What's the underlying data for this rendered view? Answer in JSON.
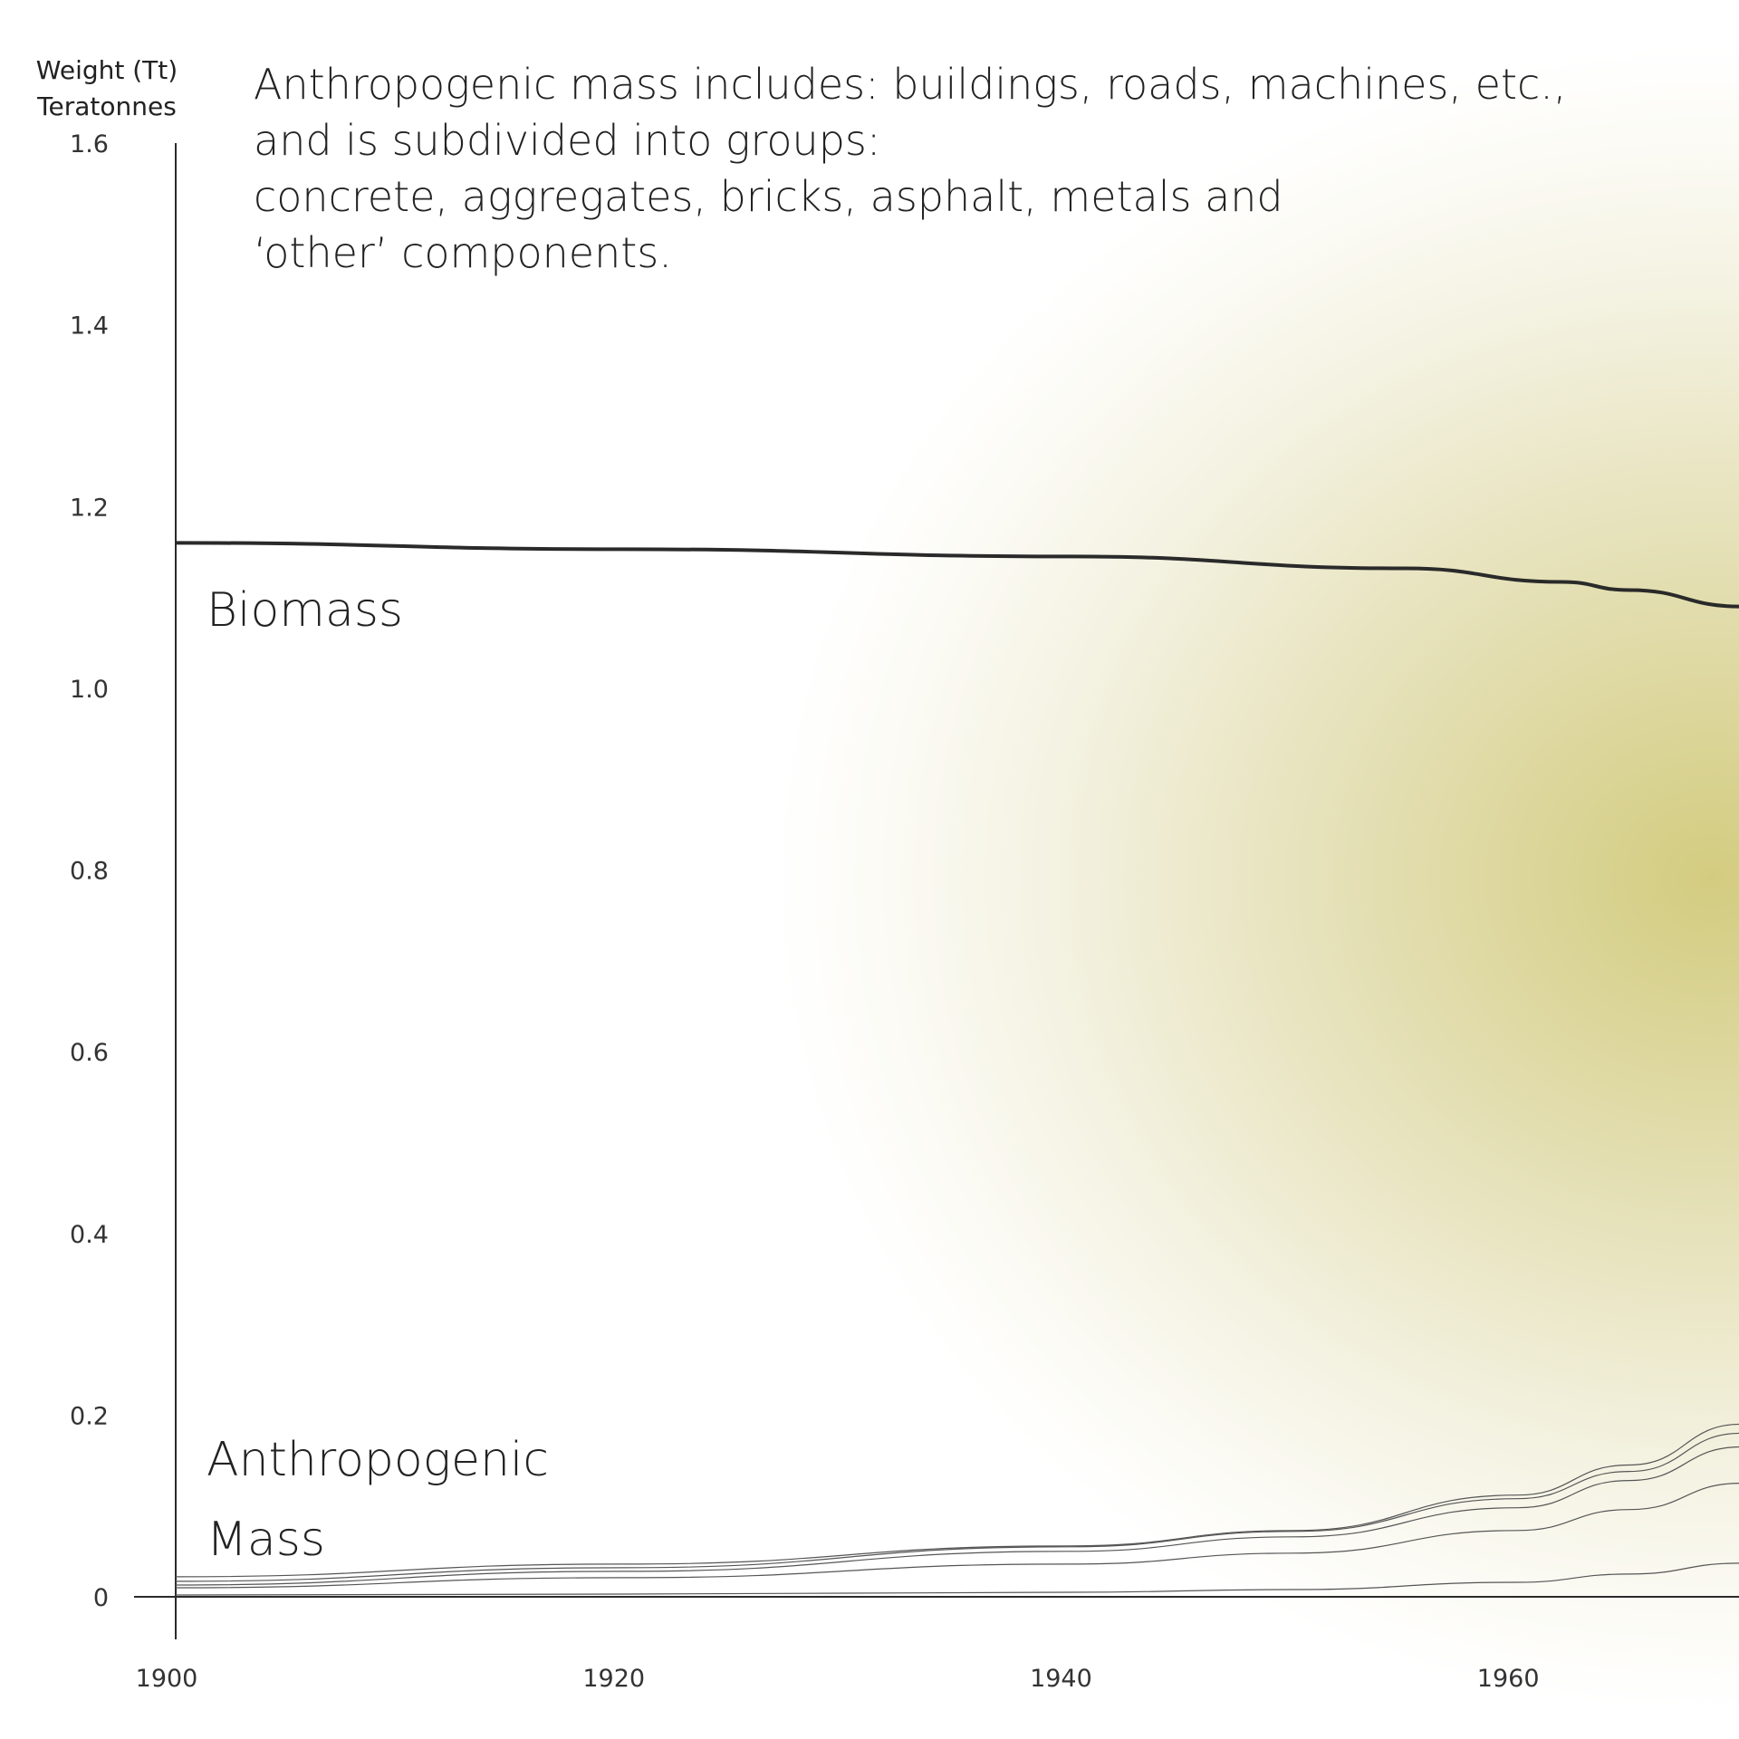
{
  "chart_data": {
    "type": "line",
    "title": "",
    "annotation_lines": [
      "Anthropogenic mass includes: buildings, roads, machines, etc.,",
      "and is subdivided into groups:",
      "concrete, aggregates, bricks, asphalt, metals and",
      "‘other’ components."
    ],
    "ylabel": [
      "Weight (Tt)",
      "Teratonnes"
    ],
    "xlabel": "",
    "xlim": [
      1900,
      1970
    ],
    "ylim": [
      0,
      1.6
    ],
    "x_ticks": [
      "1900",
      "1920",
      "1940",
      "1960"
    ],
    "y_ticks": [
      "1.6",
      "1.4",
      "1.2",
      "1.0",
      "0.8",
      "0.6",
      "0.4",
      "0.2",
      "0"
    ],
    "grid": false,
    "series_labels": {
      "biomass": "Biomass",
      "anthropogenic": [
        "Anthropogenic",
        "Mass"
      ]
    },
    "series": [
      {
        "name": "Biomass",
        "x": [
          1900,
          1920,
          1940,
          1955,
          1962,
          1965,
          1970
        ],
        "y": [
          1.16,
          1.153,
          1.145,
          1.132,
          1.117,
          1.108,
          1.09
        ]
      },
      {
        "name": "",
        "x": [
          1900,
          1920,
          1940,
          1950,
          1960,
          1965,
          1970
        ],
        "y": [
          0.022,
          0.036,
          0.056,
          0.073,
          0.112,
          0.145,
          0.19
        ]
      },
      {
        "name": "",
        "x": [
          1900,
          1920,
          1940,
          1950,
          1960,
          1965,
          1970
        ],
        "y": [
          0.017,
          0.032,
          0.055,
          0.072,
          0.108,
          0.138,
          0.18
        ]
      },
      {
        "name": "",
        "x": [
          1900,
          1920,
          1940,
          1950,
          1960,
          1965,
          1970
        ],
        "y": [
          0.013,
          0.028,
          0.05,
          0.066,
          0.098,
          0.128,
          0.165
        ]
      },
      {
        "name": "",
        "x": [
          1900,
          1920,
          1940,
          1950,
          1960,
          1965,
          1970
        ],
        "y": [
          0.01,
          0.021,
          0.036,
          0.048,
          0.073,
          0.096,
          0.125
        ]
      },
      {
        "name": "",
        "x": [
          1900,
          1920,
          1940,
          1950,
          1960,
          1965,
          1970
        ],
        "y": [
          0.002,
          0.003,
          0.005,
          0.008,
          0.016,
          0.025,
          0.037
        ]
      }
    ],
    "colors": {
      "biomass": "#2a2a2a",
      "anthropogenic": "#555555"
    }
  }
}
